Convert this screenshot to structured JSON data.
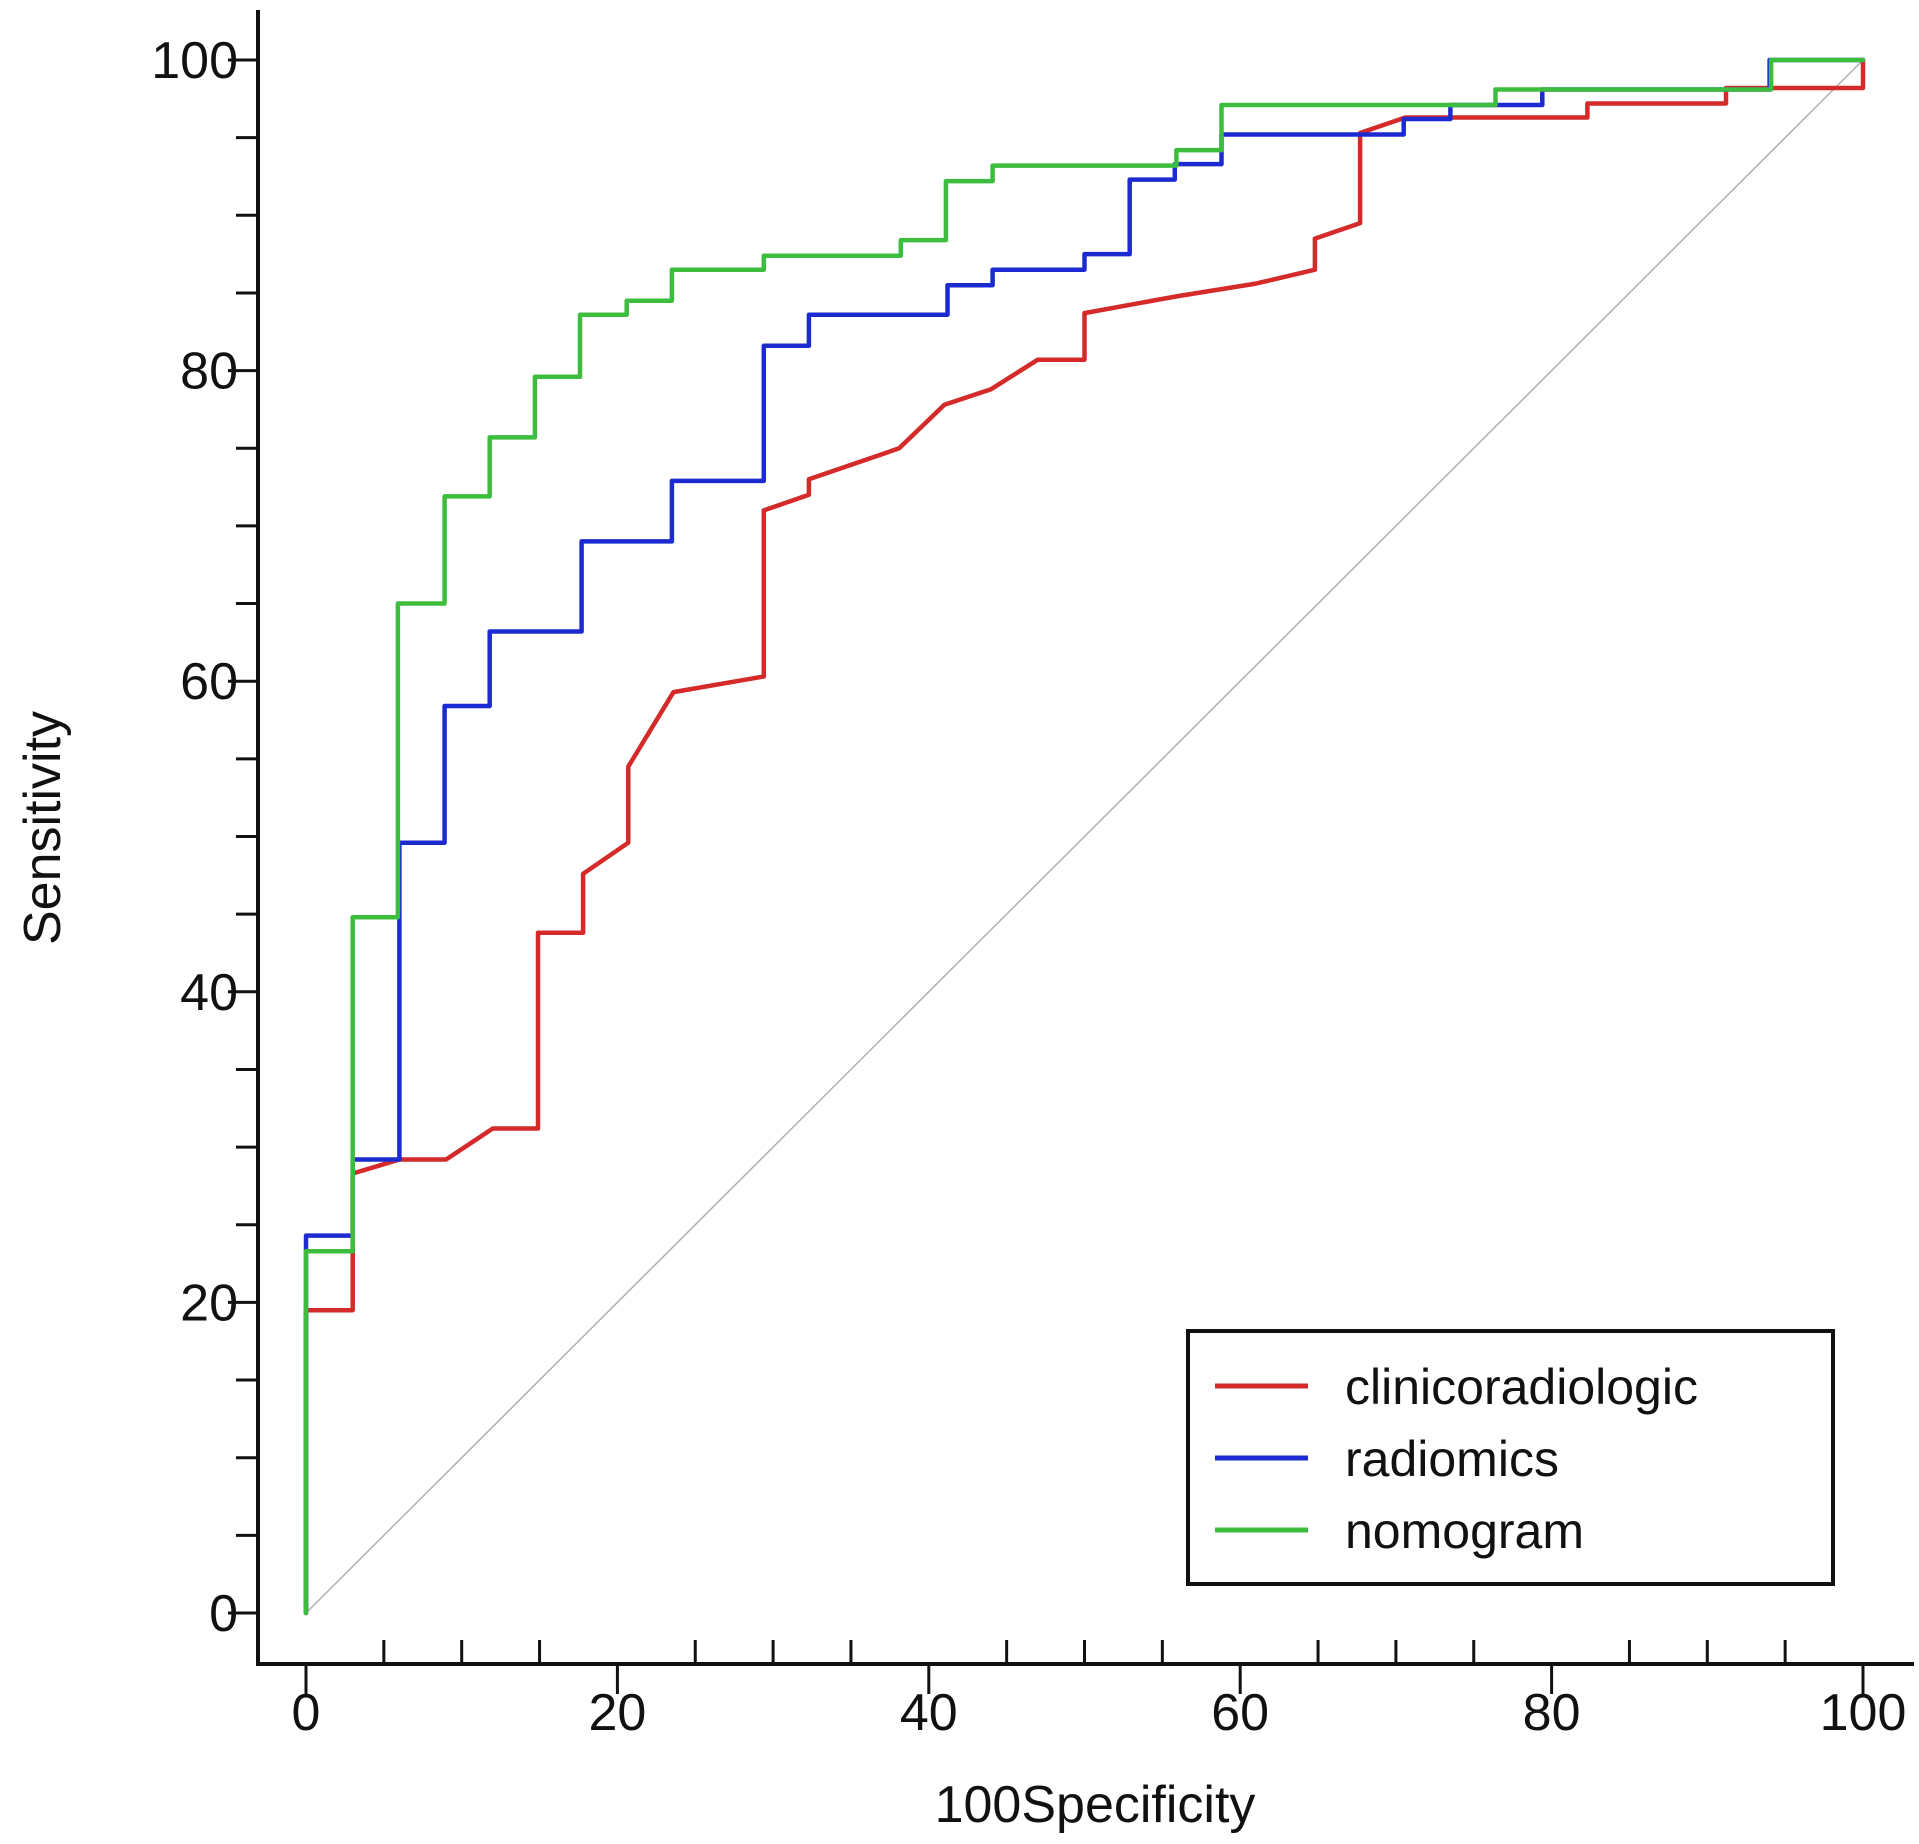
{
  "chart_data": {
    "type": "line",
    "title": "",
    "xlabel": "100Specificity",
    "ylabel": "Sensitivity",
    "xlim": [
      0,
      100
    ],
    "ylim": [
      0,
      100
    ],
    "x_ticks": [
      "0",
      "20",
      "40",
      "60",
      "80",
      "100"
    ],
    "y_ticks": [
      "0",
      "20",
      "40",
      "60",
      "80",
      "100"
    ],
    "grid": false,
    "legend_position": "bottom-right",
    "reference_line": {
      "name": "chance diagonal",
      "x": [
        0,
        100
      ],
      "y": [
        0,
        100
      ],
      "color": "#b0b0b0"
    },
    "series": [
      {
        "name": "clinicoradiologic",
        "color": "#d42a2a",
        "points": [
          [
            0,
            0
          ],
          [
            0,
            19.5
          ],
          [
            3,
            19.5
          ],
          [
            3,
            28.3
          ],
          [
            6,
            29.2
          ],
          [
            9,
            29.2
          ],
          [
            12,
            31.2
          ],
          [
            14.9,
            31.2
          ],
          [
            14.9,
            43.8
          ],
          [
            17.8,
            43.8
          ],
          [
            17.8,
            47.6
          ],
          [
            20.7,
            49.6
          ],
          [
            20.7,
            54.5
          ],
          [
            23.6,
            59.3
          ],
          [
            29.4,
            60.3
          ],
          [
            29.4,
            71
          ],
          [
            32.3,
            72
          ],
          [
            32.3,
            73
          ],
          [
            38.1,
            75
          ],
          [
            41,
            77.8
          ],
          [
            44,
            78.8
          ],
          [
            47,
            80.7
          ],
          [
            50,
            80.7
          ],
          [
            50,
            83.7
          ],
          [
            56,
            84.8
          ],
          [
            61,
            85.6
          ],
          [
            64.8,
            86.5
          ],
          [
            64.8,
            88.5
          ],
          [
            67.7,
            89.5
          ],
          [
            67.7,
            95.3
          ],
          [
            70.6,
            96.3
          ],
          [
            76.4,
            96.3
          ],
          [
            82.3,
            96.3
          ],
          [
            82.3,
            97.2
          ],
          [
            91.2,
            97.2
          ],
          [
            91.2,
            98.2
          ],
          [
            100,
            98.2
          ],
          [
            100,
            100
          ]
        ]
      },
      {
        "name": "radiomics",
        "color": "#1c2bd1",
        "points": [
          [
            0,
            0
          ],
          [
            0,
            24.3
          ],
          [
            3,
            24.3
          ],
          [
            3,
            29.2
          ],
          [
            6,
            29.2
          ],
          [
            6,
            49.6
          ],
          [
            8.9,
            49.6
          ],
          [
            8.9,
            58.4
          ],
          [
            11.8,
            58.4
          ],
          [
            11.8,
            63.2
          ],
          [
            17.7,
            63.2
          ],
          [
            17.7,
            69
          ],
          [
            23.5,
            69
          ],
          [
            23.5,
            72.9
          ],
          [
            29.4,
            72.9
          ],
          [
            29.4,
            81.6
          ],
          [
            32.3,
            81.6
          ],
          [
            32.3,
            83.6
          ],
          [
            41.2,
            83.6
          ],
          [
            41.2,
            85.5
          ],
          [
            44.1,
            85.5
          ],
          [
            44.1,
            86.5
          ],
          [
            50,
            86.5
          ],
          [
            50,
            87.5
          ],
          [
            52.9,
            87.5
          ],
          [
            52.9,
            92.3
          ],
          [
            55.8,
            92.3
          ],
          [
            55.8,
            93.3
          ],
          [
            58.8,
            93.3
          ],
          [
            58.8,
            95.2
          ],
          [
            70.5,
            95.2
          ],
          [
            70.5,
            96.2
          ],
          [
            73.5,
            96.2
          ],
          [
            73.5,
            97.1
          ],
          [
            79.4,
            97.1
          ],
          [
            79.4,
            98.1
          ],
          [
            94,
            98.1
          ],
          [
            94,
            100
          ],
          [
            100,
            100
          ]
        ]
      },
      {
        "name": "nomogram",
        "color": "#3dbd3d",
        "points": [
          [
            0,
            0
          ],
          [
            0,
            23.3
          ],
          [
            3,
            23.3
          ],
          [
            3,
            44.8
          ],
          [
            5.9,
            44.8
          ],
          [
            5.9,
            65
          ],
          [
            8.9,
            65
          ],
          [
            8.9,
            71.9
          ],
          [
            11.8,
            71.9
          ],
          [
            11.8,
            75.7
          ],
          [
            14.7,
            75.7
          ],
          [
            14.7,
            79.6
          ],
          [
            17.6,
            79.6
          ],
          [
            17.6,
            83.6
          ],
          [
            20.6,
            83.6
          ],
          [
            20.6,
            84.5
          ],
          [
            23.5,
            84.5
          ],
          [
            23.5,
            86.5
          ],
          [
            29.4,
            86.5
          ],
          [
            29.4,
            87.4
          ],
          [
            38.2,
            87.4
          ],
          [
            38.2,
            88.4
          ],
          [
            41.1,
            88.4
          ],
          [
            41.1,
            92.2
          ],
          [
            44.1,
            92.2
          ],
          [
            44.1,
            93.2
          ],
          [
            55.9,
            93.2
          ],
          [
            55.9,
            94.2
          ],
          [
            58.8,
            94.2
          ],
          [
            58.8,
            97.1
          ],
          [
            76.4,
            97.1
          ],
          [
            76.4,
            98.1
          ],
          [
            94.1,
            98.1
          ],
          [
            94.1,
            100
          ],
          [
            100,
            100
          ]
        ]
      }
    ]
  }
}
